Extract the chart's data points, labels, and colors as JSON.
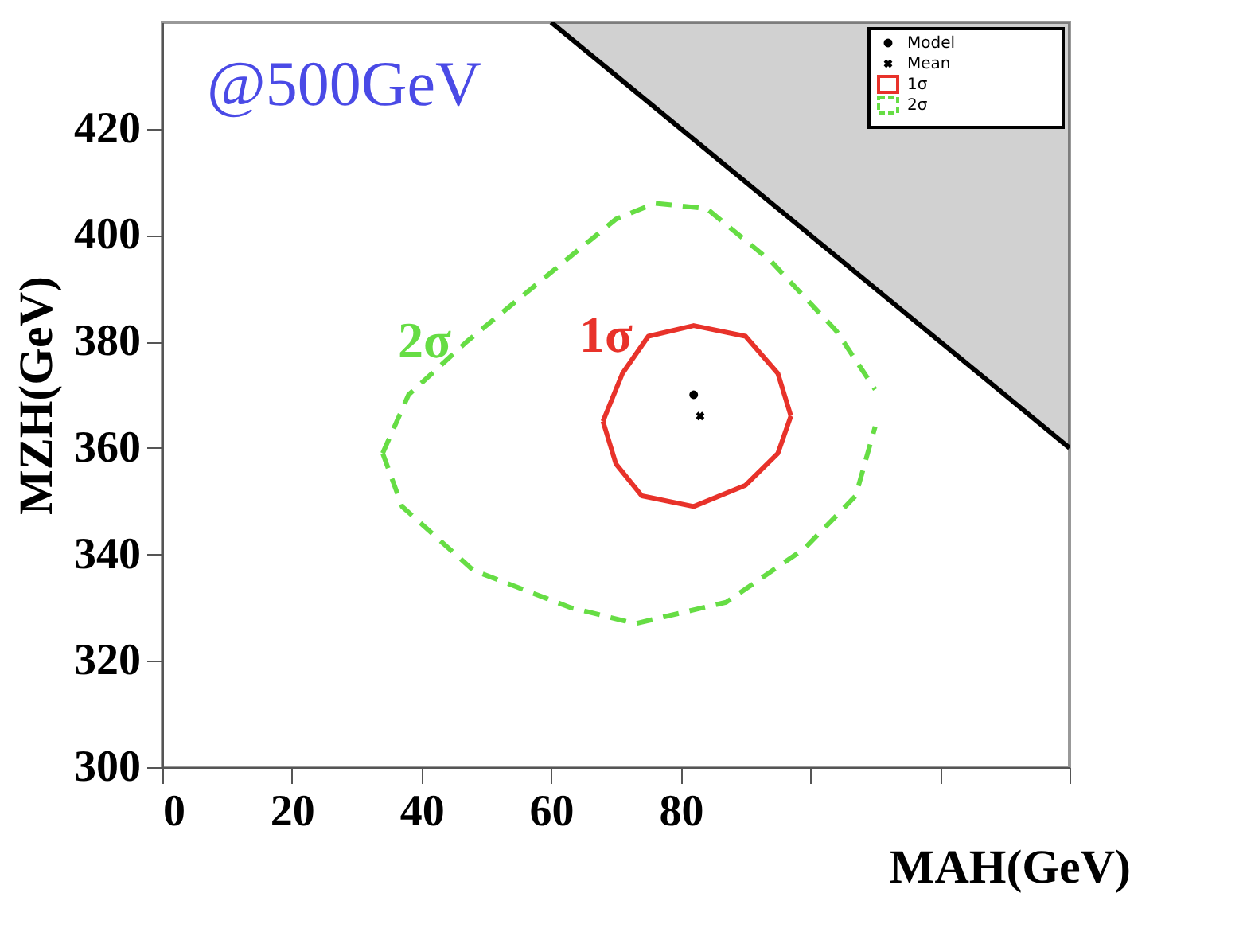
{
  "chart_data": {
    "type": "line",
    "xlabel": "MAH(GeV)",
    "ylabel": "MZH(GeV)",
    "xlim": [
      0,
      140
    ],
    "ylim": [
      300,
      440
    ],
    "xticks": [
      0,
      20,
      40,
      60,
      80,
      {
        "value": 100,
        "label": null
      },
      {
        "value": 120,
        "label": null
      },
      {
        "value": 140,
        "label": null
      }
    ],
    "yticks": [
      300,
      320,
      340,
      360,
      380,
      400,
      420
    ],
    "grid": false,
    "legend": "top right",
    "annotations": [
      "@500GeV"
    ],
    "series": [
      {
        "color": "#000000",
        "x": [
          60,
          140
        ],
        "values": [
          440,
          360
        ],
        "lower": [
          440,
          360
        ],
        "upper": [
          440,
          440
        ]
      },
      {
        "name": "Model",
        "type": "scatter",
        "marker": "circle",
        "color": "#000000",
        "x": [
          82
        ],
        "values": [
          370
        ]
      },
      {
        "name": "Mean",
        "type": "scatter",
        "marker": "cross",
        "color": "#000000",
        "x": [
          83
        ],
        "values": [
          366
        ]
      },
      {
        "name": "1σ",
        "line_style": "solid",
        "color": "#e8322a",
        "x": [
          68,
          71,
          75,
          82,
          90,
          95,
          97
        ],
        "values": [
          365,
          374,
          381,
          383,
          381,
          374,
          366
        ]
      },
      {
        "line_style": "solid",
        "color": "#e8322a",
        "x": [
          68,
          70,
          74,
          82,
          90,
          95,
          97
        ],
        "values": [
          365,
          357,
          351,
          349,
          353,
          359,
          366
        ]
      },
      {
        "name": "2σ",
        "line_style": "dashed",
        "color": "#66dd44",
        "x": [
          34,
          38,
          47,
          59,
          70,
          76,
          84,
          94,
          104,
          110
        ],
        "values": [
          359,
          370,
          380,
          392,
          403,
          406,
          405,
          395,
          382,
          371
        ]
      },
      {
        "line_style": "dashed",
        "color": "#66dd44",
        "x": [
          34,
          37,
          48,
          63,
          73,
          87,
          99,
          107,
          110
        ],
        "values": [
          359,
          349,
          337,
          330,
          327,
          331,
          341,
          351,
          364
        ]
      }
    ]
  }
}
